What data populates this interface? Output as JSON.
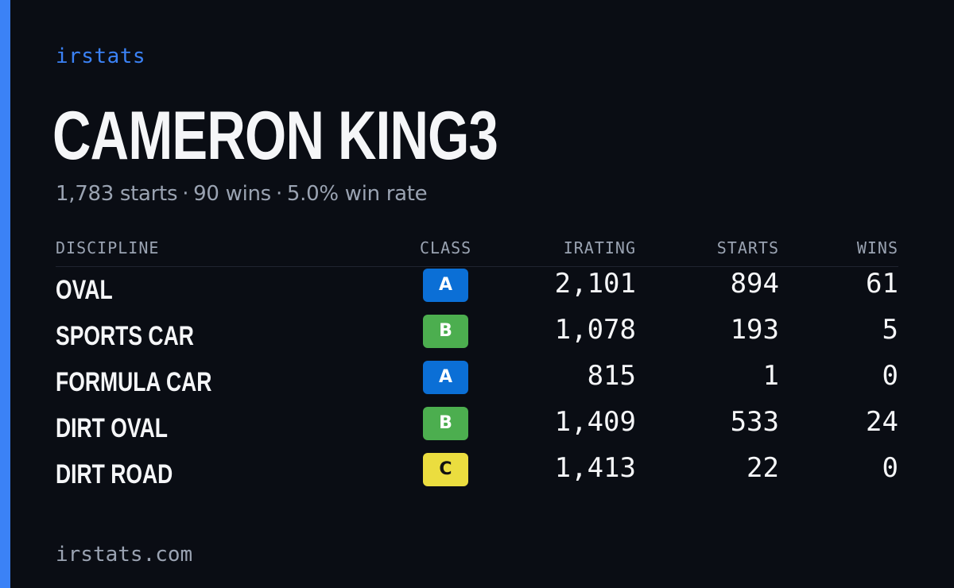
{
  "brand": "irstats",
  "driver": {
    "name": "CAMERON KING3",
    "starts": "1,783 starts",
    "wins": "90 wins",
    "win_rate": "5.0% win rate",
    "separator": "·"
  },
  "table": {
    "headers": {
      "discipline": "DISCIPLINE",
      "class": "CLASS",
      "irating": "IRATING",
      "starts": "STARTS",
      "wins": "WINS"
    },
    "rows": [
      {
        "discipline": "OVAL",
        "class": "A",
        "irating": "2,101",
        "starts": "894",
        "wins": "61"
      },
      {
        "discipline": "SPORTS CAR",
        "class": "B",
        "irating": "1,078",
        "starts": "193",
        "wins": "5"
      },
      {
        "discipline": "FORMULA CAR",
        "class": "A",
        "irating": "815",
        "starts": "1",
        "wins": "0"
      },
      {
        "discipline": "DIRT OVAL",
        "class": "B",
        "irating": "1,409",
        "starts": "533",
        "wins": "24"
      },
      {
        "discipline": "DIRT ROAD",
        "class": "C",
        "irating": "1,413",
        "starts": "22",
        "wins": "0"
      }
    ]
  },
  "class_colors": {
    "A": {
      "bg": "#0b6fd6",
      "fg": "#ffffff"
    },
    "B": {
      "bg": "#4cae4f",
      "fg": "#ffffff"
    },
    "C": {
      "bg": "#ebdd3f",
      "fg": "#111111"
    }
  },
  "accent_color": "#3b82f6",
  "footer": "irstats.com"
}
